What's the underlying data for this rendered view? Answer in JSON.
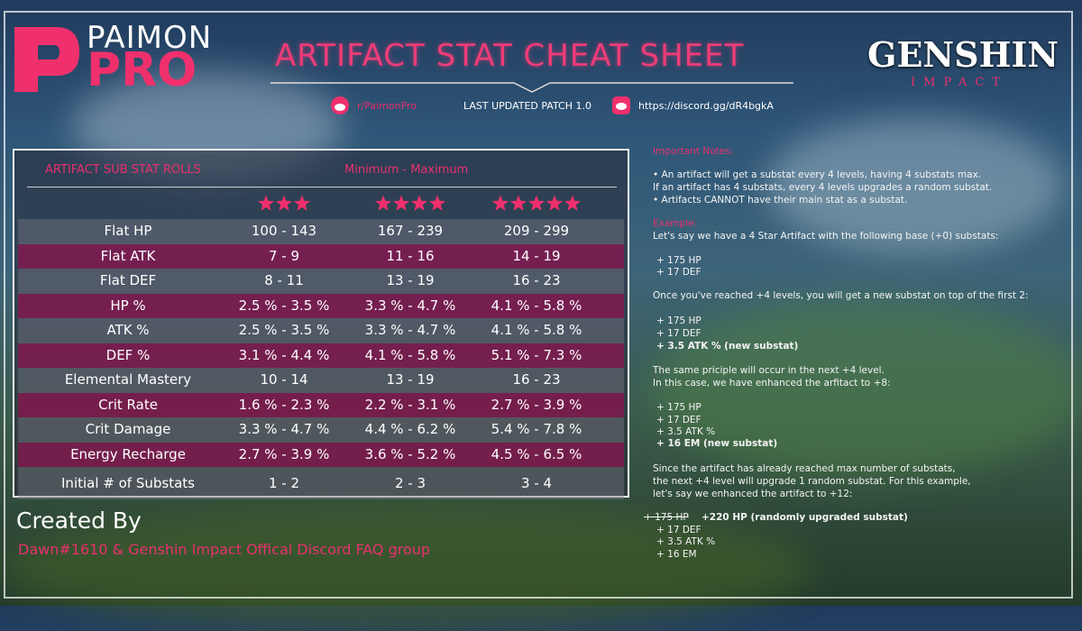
{
  "header": {
    "brand_top": "PAIMON",
    "brand_bottom": "PRO",
    "title": "ARTIFACT STAT CHEAT SHEET",
    "subreddit": "r/PaimonPro",
    "updated": "LAST UPDATED PATCH 1.0",
    "discord": "https://discord.gg/dR4bgkA",
    "logo_top": "GENSHIN",
    "logo_bottom": "IMPACT"
  },
  "table": {
    "title": "ARTIFACT SUB STAT ROLLS",
    "range_label": "Minimum - Maximum",
    "star_counts": [
      3,
      4,
      5
    ],
    "rows": [
      [
        "Flat HP",
        "100 - 143",
        "167 - 239",
        "209 - 299"
      ],
      [
        "Flat ATK",
        "7 - 9",
        "11 - 16",
        "14 - 19"
      ],
      [
        "Flat DEF",
        "8 - 11",
        "13 - 19",
        "16 - 23"
      ],
      [
        "HP %",
        "2.5 % - 3.5 %",
        "3.3 % - 4.7 %",
        "4.1 % - 5.8 %"
      ],
      [
        "ATK %",
        "2.5 % - 3.5 %",
        "3.3 % - 4.7 %",
        "4.1 % - 5.8 %"
      ],
      [
        "DEF %",
        "3.1 % - 4.4 %",
        "4.1 % - 5.8 %",
        "5.1 % - 7.3 %"
      ],
      [
        "Elemental Mastery",
        "10 - 14",
        "13 - 19",
        "16 - 23"
      ],
      [
        "Crit Rate",
        "1.6 % - 2.3 %",
        "2.2 % - 3.1 %",
        "2.7 % - 3.9 %"
      ],
      [
        "Crit Damage",
        "3.3 % - 4.7 %",
        "4.4 % - 6.2 %",
        "5.4 % - 7.8 %"
      ],
      [
        "Energy Recharge",
        "2.7 % - 3.9 %",
        "3.6 % - 5.2 %",
        "4.5 % - 6.5 %"
      ],
      [
        "Initial # of Substats",
        "1 - 2",
        "2 - 3",
        "3 - 4"
      ]
    ]
  },
  "credits": {
    "heading": "Created By",
    "names": "Dawn#1610 & Genshin Impact Offical Discord FAQ group"
  },
  "notes": {
    "lines": [
      "Important Notes:",
      "• An artifact will get a substat every 4 levels, having 4 substats max.",
      "If an artifact has 4 substats, every 4 levels upgrades a random substat.",
      "• Artifacts CANNOT have their main stat as a substat.",
      "Example:",
      "Let's say we have a 4 Star Artifact with the following base (+0) substats:",
      "+ 175 HP",
      "+ 17 DEF",
      "Once you've reached +4 levels, you will get a new substat on top of the first 2:",
      "+ 175 HP",
      "+ 17 DEF",
      "+ 3.5 ATK % (new substat)",
      "The same priciple will occur in the next +4 level.",
      "In this case, we have enhanced the arfitact to +8:",
      "+ 175 HP",
      "+ 17 DEF",
      "+ 3.5 ATK %",
      "+ 16 EM (new substat)",
      "Since the artifact has already reached max number of substats,",
      "the next +4 level will upgrade 1 random substat. For this example,",
      "let's say we enhanced the artifact to +12:",
      [
        "+ 175 HP",
        "+220 HP (randomly upgraded substat)"
      ],
      "+ 17 DEF",
      "+ 3.5 ATK %",
      "+ 16 EM"
    ]
  }
}
